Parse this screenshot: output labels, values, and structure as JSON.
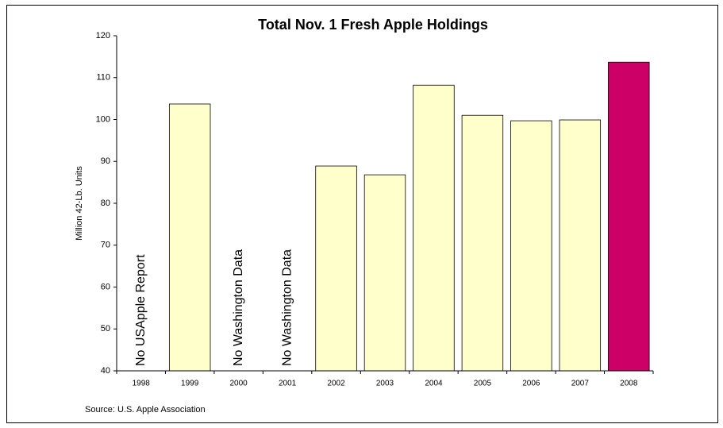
{
  "chart_data": {
    "type": "bar",
    "title": "Total Nov. 1 Fresh Apple Holdings",
    "y_label": "Million 42-Lb. Units",
    "source": "Source: U.S. Apple Association",
    "categories": [
      "1998",
      "1999",
      "2000",
      "2001",
      "2002",
      "2003",
      "2004",
      "2005",
      "2006",
      "2007",
      "2008"
    ],
    "values": [
      null,
      103.7,
      null,
      null,
      88.9,
      86.8,
      108.2,
      101,
      99.7,
      99.9,
      113.7
    ],
    "colors": [
      null,
      "#ffffcc",
      null,
      null,
      "#ffffcc",
      "#ffffcc",
      "#ffffcc",
      "#ffffcc",
      "#ffffcc",
      "#ffffcc",
      "#cc0066"
    ],
    "annotations": [
      {
        "text": "No USApple Report",
        "category": "1998"
      },
      {
        "text": "No Washington Data",
        "category": "2000"
      },
      {
        "text": "No Washington Data",
        "category": "2001"
      }
    ],
    "ylim": [
      40,
      120
    ],
    "yticks": [
      40,
      50,
      60,
      70,
      80,
      90,
      100,
      110,
      120
    ],
    "grid": false
  }
}
